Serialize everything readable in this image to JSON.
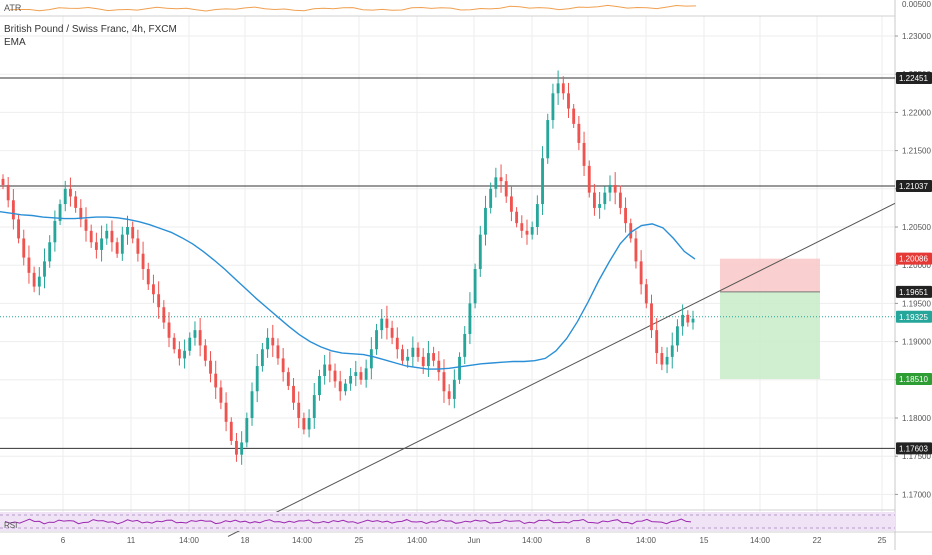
{
  "chart_data": {
    "type": "candlestick",
    "title": "British Pound / Swiss Franc, 4h, FXCM",
    "indicators": {
      "atr": {
        "label": "ATR",
        "value_label": "0.00500",
        "color": "#f0a050"
      },
      "ema": {
        "label": "EMA",
        "color": "#2a8fd6"
      },
      "rsi": {
        "label": "RSI",
        "color": "#9c27b0"
      }
    },
    "colors": {
      "up": "#26a69a",
      "down": "#ef5350",
      "ema": "#2a8fd6",
      "grid": "#eeeeee",
      "stop_zone": "#f9c7c7",
      "target_zone": "#c8ebc8",
      "trendline": "#555555",
      "label_dark": "#222222",
      "label_red": "#e53935",
      "label_teal": "#26a69a",
      "label_green": "#2e9d33"
    },
    "y_axis": {
      "ylim": [
        1.165,
        1.23
      ],
      "ticks": [
        "1.23000",
        "1.22500",
        "1.22000",
        "1.21500",
        "1.21000",
        "1.20500",
        "1.20000",
        "1.19500",
        "1.19000",
        "1.18500",
        "1.18000",
        "1.17500",
        "1.17000"
      ]
    },
    "x_axis": {
      "ticks": [
        "6",
        "11",
        "14:00",
        "18",
        "14:00",
        "25",
        "14:00",
        "Jun",
        "14:00",
        "8",
        "14:00",
        "15",
        "14:00",
        "22",
        "25"
      ]
    },
    "horizontal_levels": [
      {
        "value": 1.22451,
        "label": "1.22451",
        "style": "label_dark"
      },
      {
        "value": 1.21037,
        "label": "1.21037",
        "style": "label_dark"
      },
      {
        "value": 1.20086,
        "label": "1.20086",
        "style": "label_red"
      },
      {
        "value": 1.19651,
        "label": "1.19651",
        "style": "label_dark"
      },
      {
        "value": 1.19325,
        "label": "1.19325",
        "style": "label_teal"
      },
      {
        "value": 1.1851,
        "label": "1.18510",
        "style": "label_green"
      },
      {
        "value": 1.17603,
        "label": "1.17603",
        "style": "label_dark"
      }
    ],
    "position": {
      "entry": 1.19651,
      "stop": 1.20086,
      "target": 1.1851
    },
    "trendline": {
      "from": 1.1645,
      "to": 1.2081
    },
    "price_path": [
      1.2105,
      1.2085,
      1.206,
      1.2035,
      1.201,
      1.199,
      1.1972,
      1.1985,
      1.2005,
      1.203,
      1.2058,
      1.208,
      1.21,
      1.209,
      1.2075,
      1.206,
      1.2045,
      1.203,
      1.202,
      1.2035,
      1.2045,
      1.203,
      1.2015,
      1.204,
      1.205,
      1.2035,
      1.2015,
      1.1995,
      1.1975,
      1.1962,
      1.1945,
      1.1925,
      1.1905,
      1.189,
      1.1878,
      1.1888,
      1.1905,
      1.1915,
      1.1895,
      1.1875,
      1.1858,
      1.184,
      1.182,
      1.1795,
      1.177,
      1.1752,
      1.1768,
      1.18,
      1.1835,
      1.1868,
      1.189,
      1.1905,
      1.1895,
      1.1878,
      1.186,
      1.1842,
      1.182,
      1.18,
      1.1785,
      1.18,
      1.183,
      1.1855,
      1.187,
      1.1862,
      1.1848,
      1.1835,
      1.1845,
      1.1855,
      1.186,
      1.185,
      1.1865,
      1.189,
      1.1915,
      1.193,
      1.1918,
      1.1905,
      1.189,
      1.1875,
      1.188,
      1.1892,
      1.188,
      1.1868,
      1.1885,
      1.1875,
      1.186,
      1.1835,
      1.1825,
      1.185,
      1.188,
      1.191,
      1.195,
      1.1995,
      1.204,
      1.2075,
      1.21,
      1.2115,
      1.211,
      1.209,
      1.207,
      1.2055,
      1.2045,
      1.204,
      1.205,
      1.208,
      1.214,
      1.219,
      1.2225,
      1.2238,
      1.2225,
      1.2205,
      1.2185,
      1.216,
      1.213,
      1.2095,
      1.2075,
      1.208,
      1.2095,
      1.2105,
      1.2095,
      1.2075,
      1.2055,
      1.2035,
      1.2005,
      1.1975,
      1.195,
      1.1915,
      1.1885,
      1.187,
      1.188,
      1.1895,
      1.192,
      1.1935,
      1.1925,
      1.193
    ],
    "ema_values": [
      1.207,
      1.2068,
      1.2066,
      1.2065,
      1.2063,
      1.2062,
      1.2061,
      1.2061,
      1.2062,
      1.2063,
      1.2063,
      1.2062,
      1.206,
      1.2057,
      1.2053,
      1.2048,
      1.2043,
      1.2036,
      1.2028,
      1.2018,
      1.2007,
      1.1995,
      1.1982,
      1.1969,
      1.1956,
      1.1944,
      1.1932,
      1.192,
      1.1909,
      1.19,
      1.1893,
      1.1888,
      1.1885,
      1.1884,
      1.1883,
      1.188,
      1.1876,
      1.1872,
      1.1868,
      1.1866,
      1.1864,
      1.1864,
      1.1865,
      1.1867,
      1.1869,
      1.1871,
      1.1872,
      1.1873,
      1.1874,
      1.1874,
      1.1875,
      1.1878,
      1.1888,
      1.1904,
      1.1926,
      1.1952,
      1.198,
      1.2005,
      1.2028,
      1.2043,
      1.2052,
      1.2054,
      1.2049,
      1.2035,
      1.2018,
      1.2008
    ],
    "range_start": "1.22451",
    "rsi_pattern": [
      0.5,
      0.56,
      0.44,
      0.6,
      0.52,
      0.4,
      0.58,
      0.48,
      0.62,
      0.46,
      0.54,
      0.42,
      0.57,
      0.5,
      0.45,
      0.61,
      0.49,
      0.53,
      0.38,
      0.55
    ]
  }
}
